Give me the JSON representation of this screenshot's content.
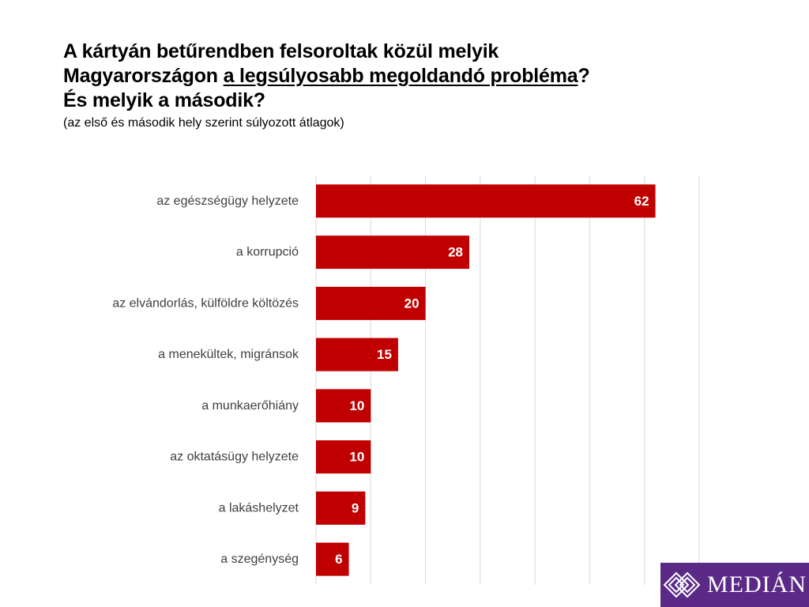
{
  "title": {
    "line1": "A kártyán betűrendben felsoroltak közül melyik",
    "line2_prefix": "Magyarországon ",
    "line2_underlined": "a legsúlyosabb megoldandó probléma",
    "line2_suffix": "?",
    "line3": "És melyik a második?",
    "subtitle": "(az első és második hely szerint súlyozott átlagok)"
  },
  "chart_data": {
    "type": "bar",
    "orientation": "horizontal",
    "categories": [
      "az egészségügy helyzete",
      "a korrupció",
      "az elvándorlás, külföldre költözés",
      "a menekültek, migránsok",
      "a munkaerőhiány",
      "az oktatásügy helyzete",
      "a lakáshelyzet",
      "a szegénység"
    ],
    "values": [
      62,
      28,
      20,
      15,
      10,
      10,
      9,
      6
    ],
    "xlim": [
      0,
      70
    ],
    "grid": true,
    "bar_color": "#c00000",
    "grid_color": "#d9d9d9",
    "data_labels": true
  },
  "logo": {
    "text": "MEDIÁN",
    "color": "#5b2a86"
  }
}
